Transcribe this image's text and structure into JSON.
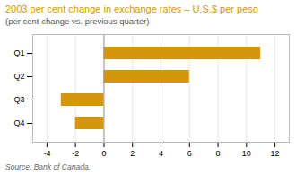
{
  "chart_data": {
    "type": "bar",
    "orientation": "horizontal",
    "title": "2003 per cent change in exchange rates – U.S.$ per peso",
    "subtitle": "(per cent change vs. previous quarter)",
    "source": "Source: Bank of Canada.",
    "categories": [
      "Q1",
      "Q2",
      "Q3",
      "Q4"
    ],
    "values": [
      11.0,
      6.0,
      -3.0,
      -2.0
    ],
    "color": "#D4960A",
    "xlim": [
      -5,
      13
    ],
    "xticks": [
      -4,
      -2,
      0,
      2,
      4,
      6,
      8,
      10,
      12
    ],
    "grid": true
  }
}
